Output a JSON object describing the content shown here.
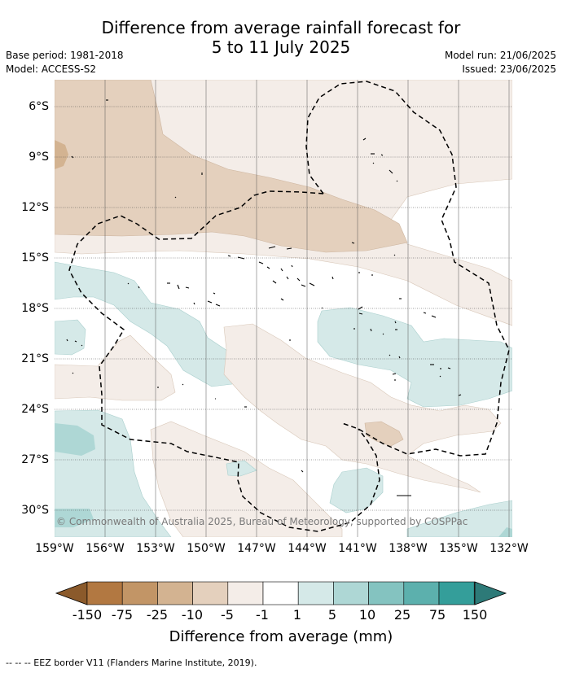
{
  "title_line1": "Difference from average rainfall forecast for",
  "title_line2": "5 to 11 July 2025",
  "base_period": "Base period: 1981-2018",
  "model": "Model: ACCESS-S2",
  "model_run": "Model run: 21/06/2025",
  "issued": "Issued: 23/06/2025",
  "lat_labels": [
    "6°S",
    "9°S",
    "12°S",
    "15°S",
    "18°S",
    "21°S",
    "24°S",
    "27°S",
    "30°S"
  ],
  "lon_labels": [
    "159°W",
    "156°W",
    "153°W",
    "150°W",
    "147°W",
    "144°W",
    "141°W",
    "138°W",
    "135°W",
    "132°W"
  ],
  "copyright": "© Commonwealth of Australia 2025, Bureau of Meteorology, supported by COSPPac",
  "colorbar": {
    "ticks": [
      "-150",
      "-75",
      "-25",
      "-10",
      "-5",
      "-1",
      "1",
      "5",
      "10",
      "25",
      "75",
      "150"
    ],
    "colors": [
      "#8b5a2b",
      "#b27841",
      "#c29566",
      "#d3b391",
      "#e4d0bd",
      "#f4ede8",
      "#ffffff",
      "#d5e9e8",
      "#aed7d5",
      "#84c3c0",
      "#5cb0ad",
      "#349e9a",
      "#2d7a78"
    ],
    "title": "Difference from average (mm)"
  },
  "footer": "-- -- -- EEZ border V11 (Flanders Marine Institute, 2019)."
}
